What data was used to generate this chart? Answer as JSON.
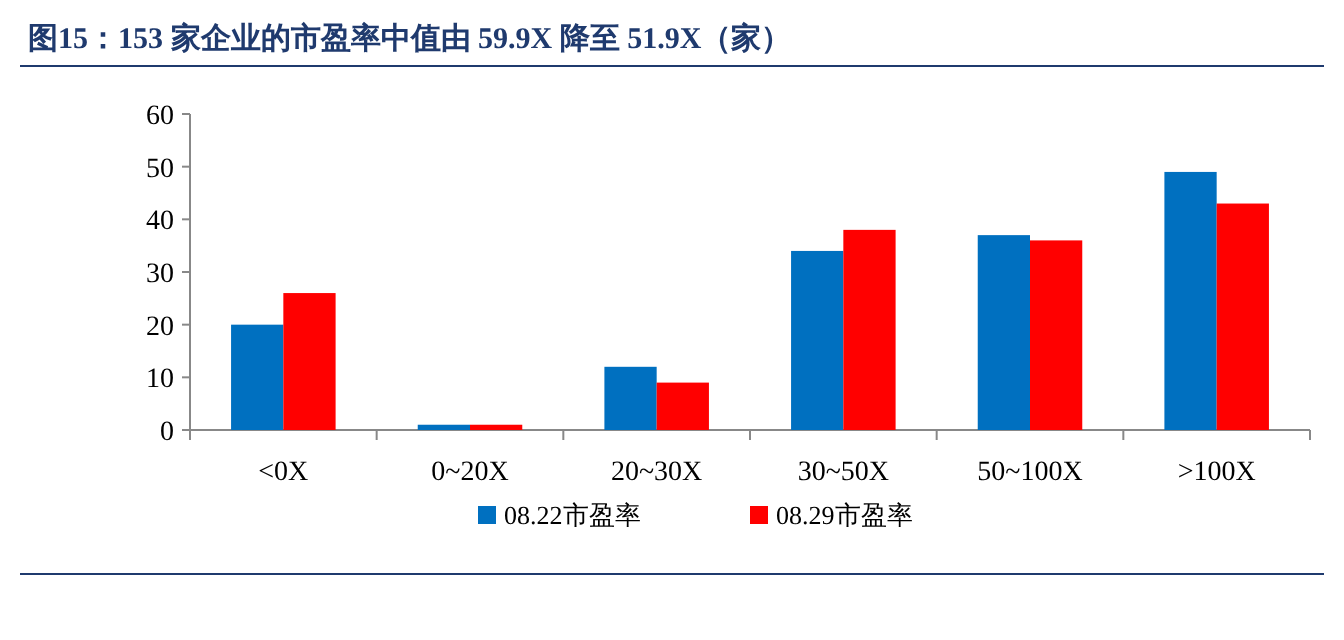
{
  "chart_data": {
    "type": "bar",
    "title": "图15：153 家企业的市盈率中值由 59.9X 降至 51.9X（家）",
    "categories": [
      "<0X",
      "0~20X",
      "20~30X",
      "30~50X",
      "50~100X",
      ">100X"
    ],
    "series": [
      {
        "name": "08.22市盈率",
        "color": "#0070c0",
        "values": [
          20,
          1,
          12,
          34,
          37,
          49
        ]
      },
      {
        "name": "08.29市盈率",
        "color": "#ff0000",
        "values": [
          26,
          1,
          9,
          38,
          36,
          43
        ]
      }
    ],
    "ylim": [
      0,
      60
    ],
    "yticks": [
      0,
      10,
      20,
      30,
      40,
      50,
      60
    ],
    "grid": false,
    "legend": "bottom"
  }
}
